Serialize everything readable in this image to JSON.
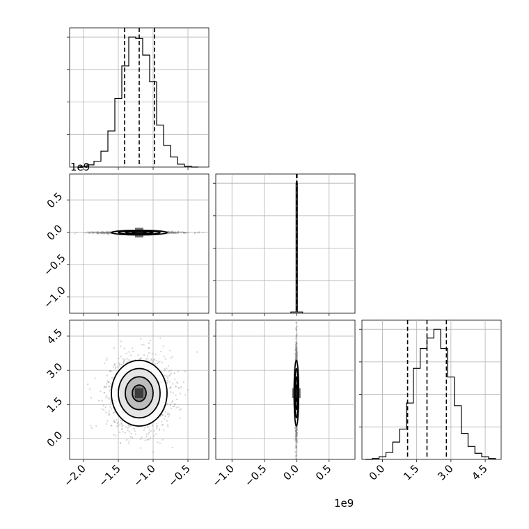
{
  "offset_labels": {
    "x_params_0": "1e9",
    "bottom_center": "1e9"
  },
  "colors": {
    "line": "#000000",
    "grid": "#b0b0b0",
    "sample": "#808080"
  },
  "chart_data": {
    "type": "corner",
    "title": "",
    "grid": true,
    "params": [
      {
        "index": 0,
        "axis_lim": [
          -2.2,
          -0.2
        ],
        "ticks": [
          -2.0,
          -1.5,
          -1.0,
          -0.5
        ],
        "tick_labels": [
          "−2.0",
          "−1.5",
          "−1.0",
          "−0.5"
        ],
        "quantiles": [
          -1.41,
          -1.2,
          -0.98
        ],
        "hist_edges": [
          -2.05,
          -1.95,
          -1.85,
          -1.75,
          -1.65,
          -1.55,
          -1.45,
          -1.35,
          -1.25,
          -1.15,
          -1.05,
          -0.95,
          -0.85,
          -0.75,
          -0.65,
          -0.55,
          -0.45,
          -0.35
        ],
        "hist_counts": [
          1,
          3,
          8,
          22,
          50,
          95,
          140,
          180,
          178,
          155,
          118,
          58,
          30,
          14,
          4,
          1,
          0
        ]
      },
      {
        "index": 1,
        "axis_lim": [
          -1.25,
          0.9
        ],
        "ticks": [
          -1.0,
          -0.5,
          0.0,
          0.5
        ],
        "tick_labels": [
          "−1.0",
          "−0.5",
          "0.0",
          "0.5"
        ],
        "quantiles": [
          -0.005,
          0.0,
          0.005
        ],
        "hist_edges": [
          -0.09,
          -0.01,
          0.01,
          0.09
        ],
        "hist_counts": [
          2,
          210,
          2
        ]
      },
      {
        "index": 2,
        "axis_lim": [
          -0.9,
          5.2
        ],
        "ticks": [
          0.0,
          1.5,
          3.0,
          4.5
        ],
        "tick_labels": [
          "0.0",
          "1.5",
          "3.0",
          "4.5"
        ],
        "quantiles": [
          1.1,
          1.95,
          2.8
        ],
        "hist_edges": [
          -0.75,
          -0.45,
          -0.15,
          0.15,
          0.45,
          0.75,
          1.05,
          1.35,
          1.65,
          1.95,
          2.25,
          2.55,
          2.85,
          3.15,
          3.45,
          3.75,
          4.05,
          4.35,
          4.65,
          4.95
        ],
        "hist_counts": [
          0,
          1,
          3,
          8,
          20,
          35,
          65,
          105,
          128,
          140,
          150,
          128,
          95,
          62,
          30,
          15,
          7,
          3,
          1
        ]
      }
    ],
    "contours": [
      {
        "row": 1,
        "col": 0,
        "center": [
          -1.2,
          -0.005
        ],
        "sigma": [
          0.2,
          0.018
        ],
        "sample_sigma": [
          0.25,
          0.006
        ],
        "levels_sigma": [
          0.5,
          1.0,
          1.5,
          2.0
        ]
      },
      {
        "row": 2,
        "col": 0,
        "center": [
          -1.2,
          2.0
        ],
        "sigma": [
          0.2,
          0.72
        ],
        "sample_sigma": [
          0.2,
          0.72
        ],
        "levels_sigma": [
          0.5,
          1.0,
          1.5,
          2.0
        ]
      },
      {
        "row": 2,
        "col": 1,
        "center": [
          -0.005,
          2.0
        ],
        "sigma": [
          0.018,
          0.72
        ],
        "sample_sigma": [
          0.006,
          0.9
        ],
        "levels_sigma": [
          0.5,
          1.0,
          1.5,
          2.0
        ]
      }
    ]
  }
}
